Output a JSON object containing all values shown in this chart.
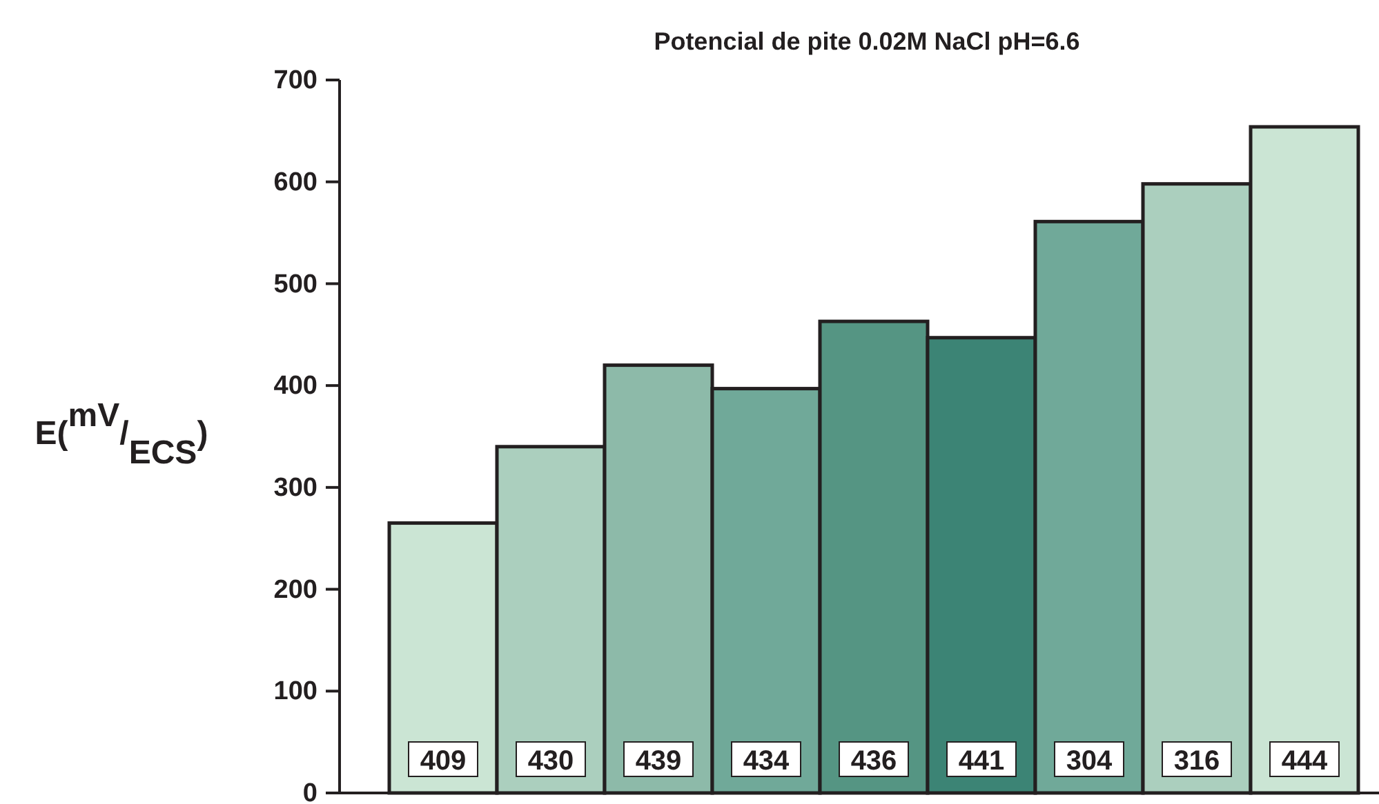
{
  "chart_data": {
    "type": "bar",
    "title": "Potencial de pite 0.02M NaCl  pH=6.6",
    "ylabel": "E($^{mV}$/$_{ECS}$)",
    "categories": [
      "409",
      "430",
      "439",
      "434",
      "436",
      "441",
      "304",
      "316",
      "444"
    ],
    "values": [
      265,
      340,
      420,
      397,
      463,
      447,
      561,
      598,
      654
    ],
    "colors": [
      "#cbe5d4",
      "#abcfbe",
      "#8dbaa9",
      "#70a999",
      "#559583",
      "#3c8475",
      "#70a999",
      "#abcfbe",
      "#cbe5d4"
    ],
    "ylim": [
      0,
      700
    ],
    "yticks": [
      0,
      100,
      200,
      300,
      400,
      500,
      600,
      700
    ],
    "grid": false
  }
}
